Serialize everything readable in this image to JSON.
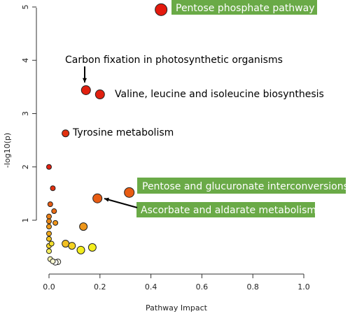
{
  "chart_data": {
    "type": "scatter",
    "title": "",
    "xlabel": "Pathway Impact",
    "ylabel": "-log10(p)",
    "xlim": [
      -0.01,
      1.0
    ],
    "ylim": [
      0.1,
      5.05
    ],
    "x_ticks": [
      "0.0",
      "0.2",
      "0.4",
      "0.6",
      "0.8",
      "1.0"
    ],
    "y_ticks": [
      "1",
      "2",
      "3",
      "4",
      "5"
    ],
    "grid": false,
    "color_scale": {
      "low": "#ffffff",
      "mid": "#f4e61c",
      "high": "#e0110f"
    },
    "points": [
      {
        "x": 0.44,
        "y": 4.95,
        "size": 8.5,
        "color": "#e41a0e",
        "label": "Pentose phosphate pathway"
      },
      {
        "x": 0.145,
        "y": 3.44,
        "size": 6.5,
        "color": "#e1200f",
        "label": "Carbon fixation in photosynthetic organisms"
      },
      {
        "x": 0.2,
        "y": 3.36,
        "size": 6.5,
        "color": "#e1200f",
        "label": "Valine, leucine and isoleucine biosynthesis"
      },
      {
        "x": 0.065,
        "y": 2.63,
        "size": 5.0,
        "color": "#e2310f",
        "label": "Tyrosine metabolism"
      },
      {
        "x": 0.315,
        "y": 1.52,
        "size": 7.0,
        "color": "#e85c13",
        "label": "Pentose and glucuronate interconversions"
      },
      {
        "x": 0.19,
        "y": 1.41,
        "size": 6.5,
        "color": "#e85c13",
        "label": "Ascorbate and aldarate metabolism"
      },
      {
        "x": 0.0,
        "y": 2.0,
        "size": 3.5,
        "color": "#e22010"
      },
      {
        "x": 0.015,
        "y": 1.6,
        "size": 3.5,
        "color": "#e4300f"
      },
      {
        "x": 0.005,
        "y": 1.3,
        "size": 3.5,
        "color": "#e65b13"
      },
      {
        "x": 0.02,
        "y": 1.17,
        "size": 3.5,
        "color": "#e86b14"
      },
      {
        "x": 0.0,
        "y": 1.07,
        "size": 3.5,
        "color": "#ea7f16"
      },
      {
        "x": 0.0,
        "y": 0.98,
        "size": 3.5,
        "color": "#ec8a18"
      },
      {
        "x": 0.025,
        "y": 0.95,
        "size": 3.5,
        "color": "#ee9419"
      },
      {
        "x": 0.0,
        "y": 0.88,
        "size": 3.5,
        "color": "#ee9a1b"
      },
      {
        "x": 0.135,
        "y": 0.88,
        "size": 5.5,
        "color": "#ee961a"
      },
      {
        "x": 0.0,
        "y": 0.75,
        "size": 3.5,
        "color": "#f0a81e"
      },
      {
        "x": 0.0,
        "y": 0.65,
        "size": 3.5,
        "color": "#f2c221"
      },
      {
        "x": 0.065,
        "y": 0.56,
        "size": 5.0,
        "color": "#f2c022"
      },
      {
        "x": 0.09,
        "y": 0.52,
        "size": 5.0,
        "color": "#f4d322"
      },
      {
        "x": 0.0,
        "y": 0.52,
        "size": 3.5,
        "color": "#f3d527"
      },
      {
        "x": 0.01,
        "y": 0.56,
        "size": 3.5,
        "color": "#f4e02c"
      },
      {
        "x": 0.17,
        "y": 0.49,
        "size": 5.5,
        "color": "#f4ee1c"
      },
      {
        "x": 0.125,
        "y": 0.44,
        "size": 5.5,
        "color": "#f4ee1c"
      },
      {
        "x": 0.0,
        "y": 0.42,
        "size": 3.5,
        "color": "#f4ee60"
      },
      {
        "x": 0.005,
        "y": 0.27,
        "size": 3.5,
        "color": "#f7f4b0"
      },
      {
        "x": 0.015,
        "y": 0.23,
        "size": 3.5,
        "color": "#f9f7d0"
      },
      {
        "x": 0.035,
        "y": 0.22,
        "size": 4.0,
        "color": "#fbfaea"
      },
      {
        "x": 0.025,
        "y": 0.21,
        "size": 4.0,
        "color": "#ffffff"
      }
    ],
    "annotations": [
      {
        "text": "Pentose phosphate pathway",
        "style": "green-box"
      },
      {
        "text": "Carbon fixation in photosynthetic organisms",
        "style": "plain",
        "arrow": true
      },
      {
        "text": "Valine, leucine and isoleucine biosynthesis",
        "style": "plain"
      },
      {
        "text": "Tyrosine metabolism",
        "style": "plain"
      },
      {
        "text": "Pentose and glucuronate interconversions",
        "style": "green-box"
      },
      {
        "text": "Ascorbate and aldarate metabolism",
        "style": "green-box",
        "arrow": true
      }
    ],
    "callout_box_color": "#6aaa47"
  }
}
